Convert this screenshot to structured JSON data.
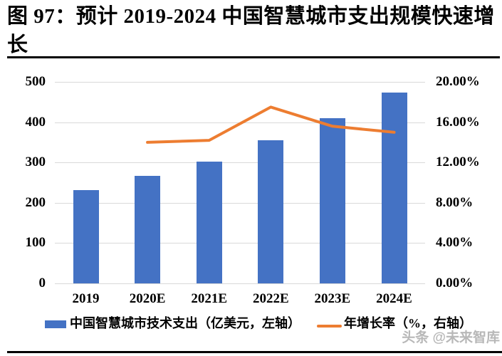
{
  "title": {
    "line1": "图 97：预计 2019-2024 中国智慧城市支出规模快速增",
    "line2": "长"
  },
  "watermark": "头条 @未来智库",
  "chart_data": {
    "type": "bar",
    "subtype": "bar-line-combo",
    "categories": [
      "2019",
      "2020E",
      "2021E",
      "2022E",
      "2023E",
      "2024E"
    ],
    "series": [
      {
        "name": "中国智慧城市技术支出（亿美元，左轴）",
        "type": "bar",
        "axis": "left",
        "color": "#4472C4",
        "values": [
          231,
          266,
          302,
          355,
          410,
          473
        ]
      },
      {
        "name": "年增长率（%，右轴）",
        "type": "line",
        "axis": "right",
        "color": "#ED7D31",
        "values": [
          null,
          14.0,
          14.2,
          17.5,
          15.6,
          15.0
        ]
      }
    ],
    "left_axis": {
      "min": 0,
      "max": 500,
      "ticks": [
        "0",
        "100",
        "200",
        "300",
        "400",
        "500"
      ]
    },
    "right_axis": {
      "min": 0,
      "max": 20,
      "ticks": [
        "0.00%",
        "4.00%",
        "8.00%",
        "12.00%",
        "16.00%",
        "20.00%"
      ]
    },
    "grid": true,
    "legend_position": "bottom"
  }
}
